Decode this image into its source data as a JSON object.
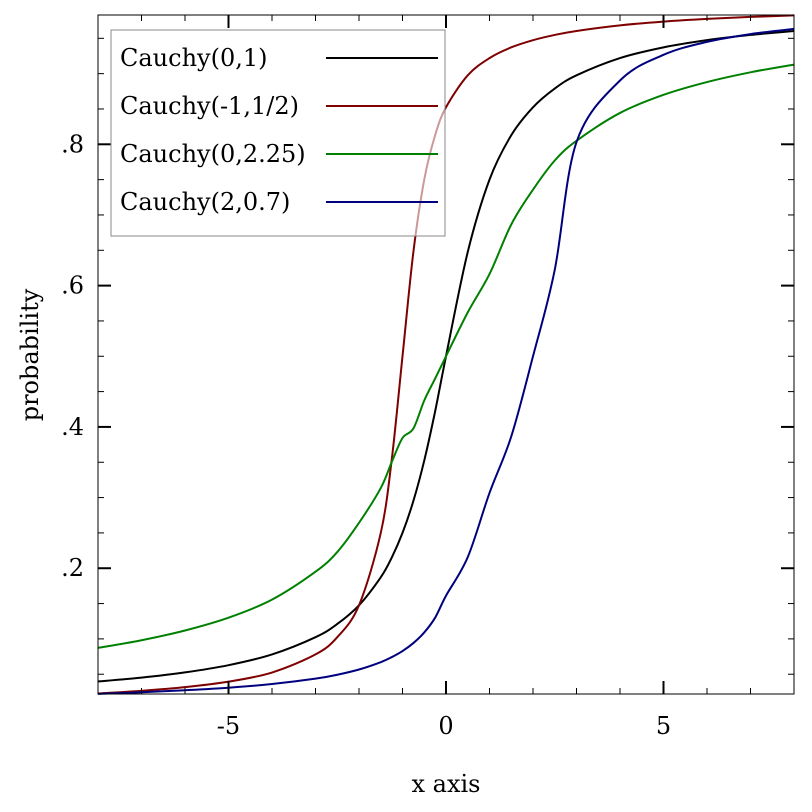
{
  "chart_data": {
    "type": "line",
    "title": "",
    "xlabel": "x axis",
    "ylabel": "probability",
    "xlim": [
      -8,
      8
    ],
    "ylim": [
      0.022,
      0.983
    ],
    "grid": false,
    "legend_position": "top-left",
    "x_ticks": [
      {
        "value": -5,
        "label": "-5"
      },
      {
        "value": 0,
        "label": "0"
      },
      {
        "value": 5,
        "label": "5"
      }
    ],
    "y_ticks": [
      {
        "value": 0.2,
        "label": ".2"
      },
      {
        "value": 0.4,
        "label": ".4"
      },
      {
        "value": 0.6,
        "label": ".6"
      },
      {
        "value": 0.8,
        "label": ".8"
      }
    ],
    "x": [
      -8,
      -7,
      -6,
      -5,
      -4,
      -3,
      -2.5,
      -2,
      -1.5,
      -1.25,
      -1,
      -0.75,
      -0.5,
      -0.25,
      0,
      0.5,
      1,
      1.5,
      2,
      2.5,
      3,
      4,
      5,
      6,
      7,
      8
    ],
    "series": [
      {
        "name": "Cauchy(0,1)",
        "color": "#000000",
        "values": [
          0.0396,
          0.0452,
          0.0526,
          0.0628,
          0.078,
          0.1024,
          0.1211,
          0.1476,
          0.1872,
          0.2148,
          0.25,
          0.2952,
          0.3524,
          0.422,
          0.5,
          0.6476,
          0.75,
          0.8128,
          0.8524,
          0.8789,
          0.8976,
          0.922,
          0.9372,
          0.9474,
          0.9548,
          0.9604
        ]
      },
      {
        "name": "Cauchy(-1,1/2)",
        "color": "#7f0000",
        "values": [
          0.0227,
          0.0265,
          0.0317,
          0.0395,
          0.0524,
          0.078,
          0.1024,
          0.1476,
          0.25,
          0.3524,
          0.5,
          0.6476,
          0.75,
          0.8128,
          0.8524,
          0.8976,
          0.922,
          0.9372,
          0.9474,
          0.9548,
          0.9604,
          0.9683,
          0.9737,
          0.9775,
          0.9803,
          0.9824
        ]
      },
      {
        "name": "Cauchy(0,2.25)",
        "color": "#008000",
        "values": [
          0.0872,
          0.0981,
          0.1119,
          0.13,
          0.1556,
          0.1951,
          0.2229,
          0.2642,
          0.3135,
          0.3499,
          0.3843,
          0.3977,
          0.4374,
          0.4684,
          0.5,
          0.5621,
          0.6163,
          0.6865,
          0.7358,
          0.7771,
          0.8049,
          0.8444,
          0.87,
          0.8881,
          0.9019,
          0.9128
        ]
      },
      {
        "name": "Cauchy(2,0.7)",
        "color": "#00007f",
        "values": [
          0.0222,
          0.0244,
          0.0273,
          0.0309,
          0.0361,
          0.0437,
          0.0493,
          0.0567,
          0.0671,
          0.0741,
          0.0828,
          0.0941,
          0.1091,
          0.13,
          0.1611,
          0.2157,
          0.3066,
          0.3865,
          0.5,
          0.6224,
          0.8032,
          0.8903,
          0.9266,
          0.945,
          0.956,
          0.9633
        ]
      }
    ]
  }
}
